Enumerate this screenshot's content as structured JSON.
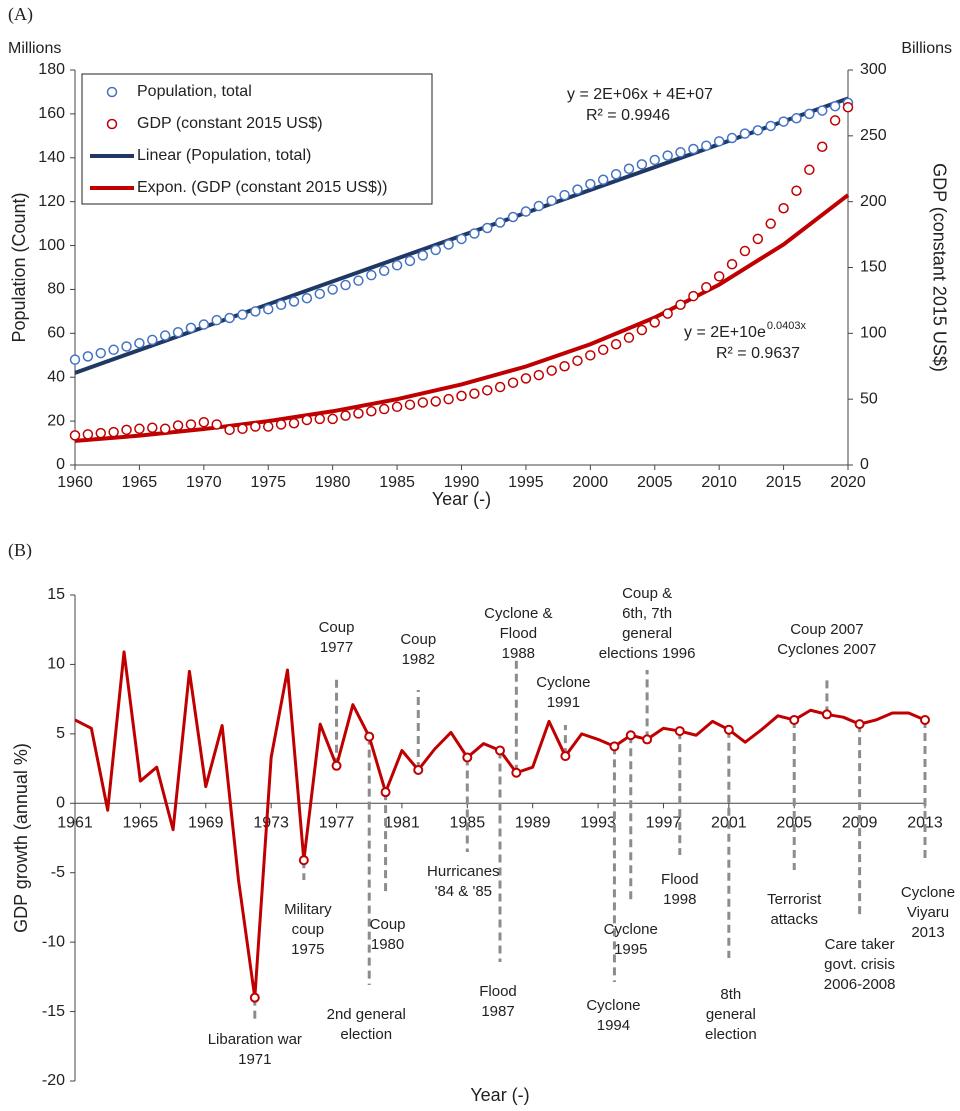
{
  "chart_data": [
    {
      "type": "scatter",
      "label": "(A)",
      "x": [
        1960,
        1961,
        1962,
        1963,
        1964,
        1965,
        1966,
        1967,
        1968,
        1969,
        1970,
        1971,
        1972,
        1973,
        1974,
        1975,
        1976,
        1977,
        1978,
        1979,
        1980,
        1981,
        1982,
        1983,
        1984,
        1985,
        1986,
        1987,
        1988,
        1989,
        1990,
        1991,
        1992,
        1993,
        1994,
        1995,
        1996,
        1997,
        1998,
        1999,
        2000,
        2001,
        2002,
        2003,
        2004,
        2005,
        2006,
        2007,
        2008,
        2009,
        2010,
        2011,
        2012,
        2013,
        2014,
        2015,
        2016,
        2017,
        2018,
        2019,
        2020
      ],
      "xlim": [
        1960,
        2020
      ],
      "xticks": [
        1960,
        1965,
        1970,
        1975,
        1980,
        1985,
        1990,
        1995,
        2000,
        2005,
        2010,
        2015,
        2020
      ],
      "ylim": [
        0,
        180
      ],
      "yticks": [
        0,
        20,
        40,
        60,
        80,
        100,
        120,
        140,
        160,
        180
      ],
      "y2lim": [
        0,
        300
      ],
      "y2ticks": [
        0,
        50,
        100,
        150,
        200,
        250,
        300
      ],
      "x_label": "Year (-)",
      "y_label": "Population (Count)",
      "y2_label": "GDP (constant 2015 US$)",
      "y_unit": "Millions",
      "y2_unit": "Billions",
      "series": [
        {
          "name": "Population, total",
          "color": "#4472c4",
          "values": [
            48,
            49.5,
            51,
            52.5,
            54,
            55.5,
            57,
            59,
            60.5,
            62.5,
            64,
            66,
            67,
            68.5,
            70,
            71,
            73,
            74.5,
            76,
            78,
            80,
            82,
            84,
            86.5,
            88.5,
            91,
            93,
            95.5,
            98,
            100.5,
            103,
            105.5,
            108,
            110.5,
            113,
            115.5,
            118,
            120.5,
            123,
            125.5,
            128,
            130,
            132.5,
            135,
            137,
            139,
            141,
            142.5,
            144,
            145.5,
            147.5,
            149,
            151,
            152.5,
            154.5,
            156.5,
            158,
            160,
            161.5,
            163.5,
            165
          ]
        },
        {
          "name": "GDP (constant 2015 US$)",
          "color": "#c00000",
          "axis": "y2",
          "values": [
            22.5,
            23.3,
            24.2,
            25,
            26.7,
            27.5,
            28.3,
            27.5,
            30,
            30.8,
            32.5,
            30.8,
            26.7,
            27.5,
            29.2,
            29.2,
            30.8,
            31.7,
            34.2,
            35,
            35,
            37.5,
            39.2,
            40.8,
            42.5,
            44.2,
            45.8,
            47.5,
            48.3,
            50,
            52.5,
            54.2,
            56.7,
            59.2,
            62.5,
            65.8,
            68.3,
            71.7,
            75,
            79.2,
            83.3,
            87.5,
            91.7,
            96.7,
            102.5,
            108.3,
            115,
            121.7,
            128.3,
            135,
            143.3,
            152.5,
            162.5,
            171.7,
            183.3,
            195,
            208.3,
            224.2,
            241.7,
            261.7,
            271.7
          ]
        }
      ],
      "trendlines": [
        {
          "name": "Linear (Population, total)",
          "color": "#1f3864",
          "text_color": "#2e86c9",
          "x": [
            1960,
            2020
          ],
          "values": [
            42,
            167
          ],
          "equation": "y = 2E+06x + 4E+07",
          "r2": "R² = 0.9946"
        },
        {
          "name": "Expon. (GDP (constant 2015 US$))",
          "color": "#c00000",
          "text_color": "#c00000",
          "axis": "y2",
          "x": [
            1960,
            1965,
            1970,
            1975,
            1980,
            1985,
            1990,
            1995,
            2000,
            2005,
            2010,
            2015,
            2020
          ],
          "values": [
            18.3,
            22.3,
            27.3,
            33.3,
            40.8,
            50,
            61.2,
            74.8,
            91.7,
            112,
            137,
            167.5,
            205
          ],
          "equation": "y = 2E+10e",
          "exponent": "0.0403x",
          "r2": "R² = 0.9637"
        }
      ]
    },
    {
      "type": "line",
      "label": "(B)",
      "x": [
        1961,
        1962,
        1963,
        1964,
        1965,
        1966,
        1967,
        1968,
        1969,
        1970,
        1971,
        1972,
        1973,
        1974,
        1975,
        1976,
        1977,
        1978,
        1979,
        1980,
        1981,
        1982,
        1983,
        1984,
        1985,
        1986,
        1987,
        1988,
        1989,
        1990,
        1991,
        1992,
        1993,
        1994,
        1995,
        1996,
        1997,
        1998,
        1999,
        2000,
        2001,
        2002,
        2003,
        2004,
        2005,
        2006,
        2007,
        2008,
        2009,
        2010,
        2011,
        2012,
        2013
      ],
      "values": [
        6.0,
        5.4,
        -0.5,
        10.9,
        1.6,
        2.6,
        -1.9,
        9.5,
        1.2,
        5.6,
        -5.5,
        -14.0,
        3.3,
        9.6,
        -4.1,
        5.7,
        2.7,
        7.1,
        4.8,
        0.8,
        3.8,
        2.4,
        3.9,
        5.1,
        3.3,
        4.3,
        3.8,
        2.2,
        2.6,
        5.9,
        3.4,
        5.0,
        4.6,
        4.1,
        4.9,
        4.6,
        5.4,
        5.2,
        4.9,
        5.9,
        5.3,
        4.4,
        5.3,
        6.3,
        6.0,
        6.7,
        6.4,
        6.2,
        5.7,
        6.0,
        6.5,
        6.5,
        6.0
      ],
      "color": "#c00000",
      "xlim": [
        1961,
        2013
      ],
      "xticks": [
        1961,
        1965,
        1969,
        1973,
        1977,
        1981,
        1985,
        1989,
        1993,
        1997,
        2001,
        2005,
        2009,
        2013
      ],
      "ylim": [
        -20,
        15
      ],
      "yticks": [
        -20,
        -15,
        -10,
        -5,
        0,
        5,
        10,
        15
      ],
      "x_label": "Year (-)",
      "y_label": "GDP growth (annual %)",
      "annotations": [
        {
          "year": 1972,
          "lines": [
            "Libaration war",
            "1971"
          ],
          "colors": [
            "#3a7fc4",
            "#3a7fc4"
          ]
        },
        {
          "year": 1975,
          "lines": [
            "Military",
            "coup",
            "1975"
          ],
          "colors": [
            "#3a7fc4",
            "#3a7fc4",
            "#3a7fc4"
          ]
        },
        {
          "year": 1977,
          "lines": [
            "Coup",
            "1977"
          ],
          "colors": [
            "#3a7fc4",
            "#3a7fc4"
          ]
        },
        {
          "year": 1979,
          "lines": [
            "2nd general",
            "election"
          ],
          "colors": [
            "#3a7fc4",
            "#3a7fc4"
          ]
        },
        {
          "year": 1980,
          "lines": [
            "Coup",
            "1980"
          ],
          "colors": [
            "#3a7fc4",
            "#3a7fc4"
          ]
        },
        {
          "year": 1982,
          "lines": [
            "Coup",
            "1982"
          ],
          "colors": [
            "#3a7fc4",
            "#3a7fc4"
          ]
        },
        {
          "year": 1985,
          "lines": [
            "Hurricanes",
            "'84 & '85"
          ],
          "colors": [
            "#5b8f22",
            "#5b8f22"
          ]
        },
        {
          "year": 1987,
          "lines": [
            "Flood",
            "1987"
          ],
          "colors": [
            "#5b8f22",
            "#5b8f22"
          ]
        },
        {
          "year": 1988,
          "lines": [
            "Cyclone &",
            "Flood",
            "1988"
          ],
          "colors": [
            "#5b8f22",
            "#5b8f22",
            "#5b8f22"
          ]
        },
        {
          "year": 1991,
          "lines": [
            "Cyclone",
            "1991"
          ],
          "colors": [
            "#5b8f22",
            "#5b8f22"
          ]
        },
        {
          "year": 1994,
          "lines": [
            "Cyclone",
            "1994"
          ],
          "colors": [
            "#5b8f22",
            "#5b8f22"
          ]
        },
        {
          "year": 1995,
          "lines": [
            "Cyclone",
            "1995"
          ],
          "colors": [
            "#5b8f22",
            "#5b8f22"
          ]
        },
        {
          "year": 1996,
          "lines": [
            "Coup &",
            "6th, 7th",
            "general",
            "elections 1996"
          ],
          "colors": [
            "#3a7fc4",
            "#3a7fc4",
            "#3a7fc4",
            "#3a7fc4"
          ]
        },
        {
          "year": 1998,
          "lines": [
            "Flood",
            "1998"
          ],
          "colors": [
            "#5b8f22",
            "#5b8f22"
          ]
        },
        {
          "year": 2001,
          "lines": [
            "8th",
            "general",
            "election"
          ],
          "colors": [
            "#3a7fc4",
            "#3a7fc4",
            "#3a7fc4"
          ]
        },
        {
          "year": 2005,
          "lines": [
            "Terrorist",
            "attacks"
          ],
          "colors": [
            "#3a7fc4",
            "#3a7fc4"
          ]
        },
        {
          "year": 2007,
          "lines": [
            "Coup 2007",
            "Cyclones 2007"
          ],
          "colors": [
            "#3a7fc4",
            "#5b8f22"
          ]
        },
        {
          "year": 2009,
          "lines": [
            "Care taker",
            "govt. crisis",
            "2006-2008"
          ],
          "colors": [
            "#3a7fc4",
            "#3a7fc4",
            "#3a7fc4"
          ]
        },
        {
          "year": 2013,
          "lines": [
            "Cyclone",
            "Viyaru",
            "2013"
          ],
          "colors": [
            "#5b8f22",
            "#5b8f22",
            "#5b8f22"
          ]
        }
      ]
    }
  ]
}
